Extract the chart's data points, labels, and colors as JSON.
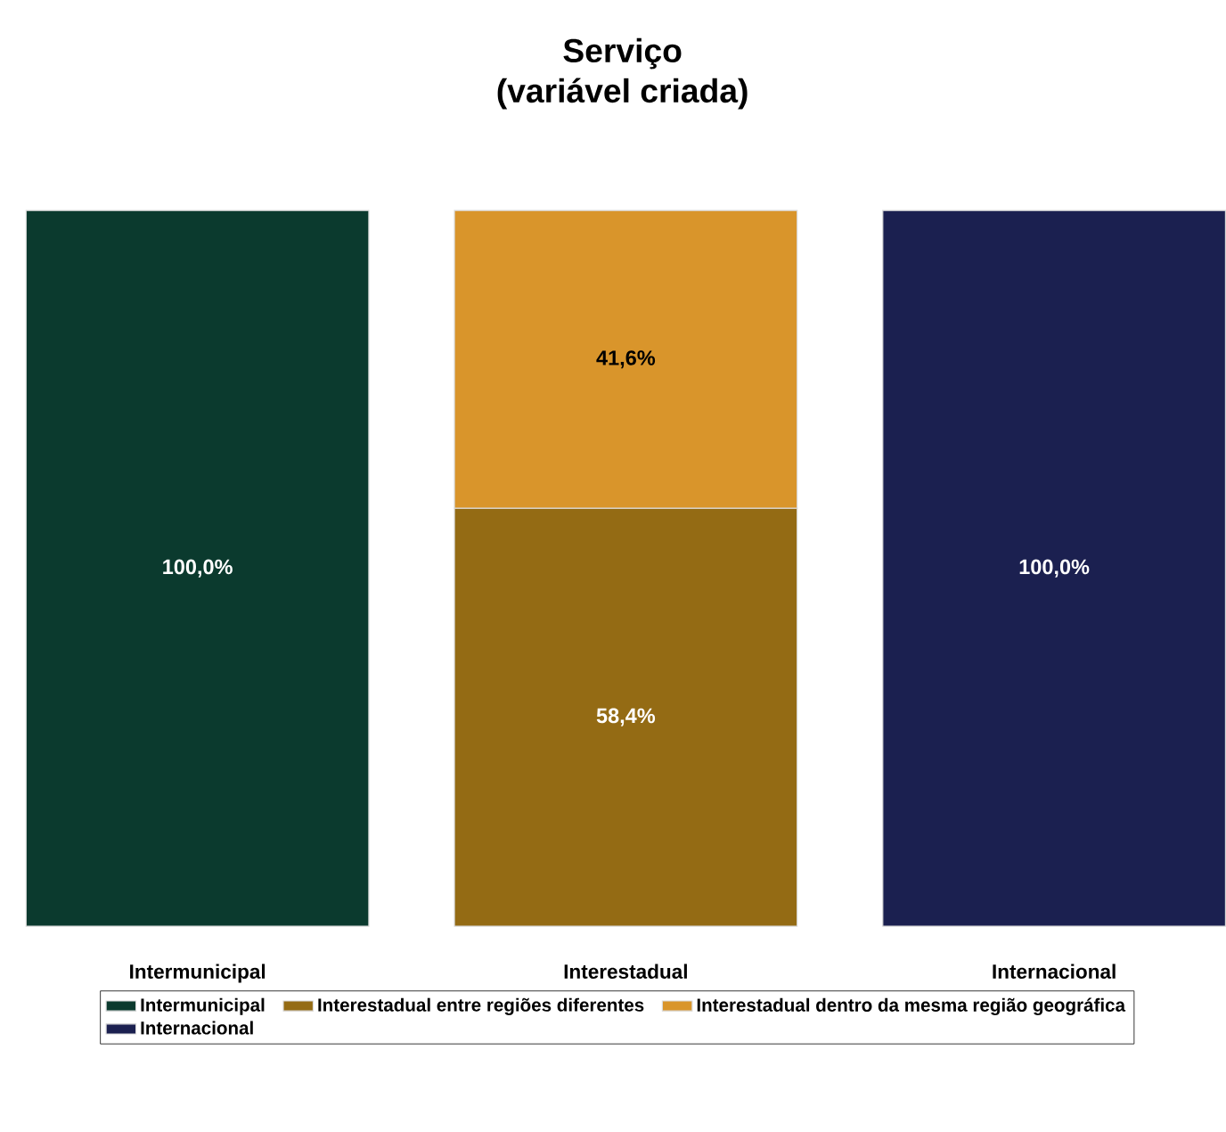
{
  "chart_data": {
    "type": "bar",
    "stacked": true,
    "title": "Serviço",
    "subtitle": "(variável criada)",
    "categories": [
      "Intermunicipal",
      "Interestadual",
      "Internacional"
    ],
    "series": [
      {
        "name": "Intermunicipal",
        "color": "#0b3a2e",
        "values": [
          100,
          null,
          null
        ],
        "value_labels": [
          "100,0%",
          null,
          null
        ]
      },
      {
        "name": "Interestadual entre regiões diferentes",
        "color": "#946b14",
        "values": [
          null,
          58.4,
          null
        ],
        "value_labels": [
          null,
          "58,4%",
          null
        ]
      },
      {
        "name": "Interestadual dentro da mesma região geográfica",
        "color": "#d9952b",
        "values": [
          null,
          41.6,
          null
        ],
        "value_labels": [
          null,
          "41,6%",
          null
        ]
      },
      {
        "name": "Internacional",
        "color": "#1b2050",
        "values": [
          null,
          null,
          100
        ],
        "value_labels": [
          null,
          null,
          "100,0%"
        ]
      }
    ],
    "legend": "bottom",
    "tick_labels": "x"
  }
}
